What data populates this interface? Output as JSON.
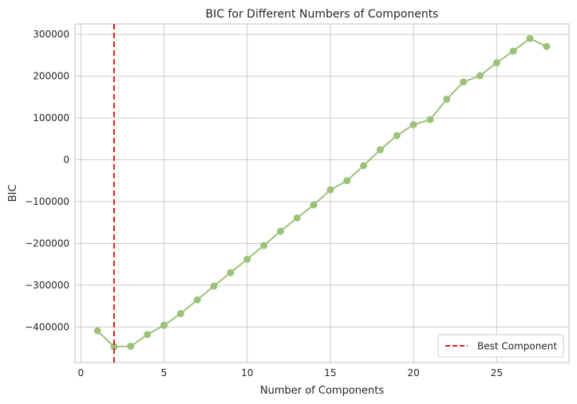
{
  "chart_data": {
    "type": "line",
    "title": "BIC for Different Numbers of Components",
    "xlabel": "Number of Components",
    "ylabel": "BIC",
    "xlim": [
      -0.35,
      29.35
    ],
    "ylim": [
      -485000,
      325000
    ],
    "xticks": [
      0,
      5,
      10,
      15,
      20,
      25
    ],
    "yticks": [
      -400000,
      -300000,
      -200000,
      -100000,
      0,
      100000,
      200000,
      300000
    ],
    "ytick_labels": [
      "−400000",
      "−300000",
      "−200000",
      "−100000",
      "0",
      "100000",
      "200000",
      "300000"
    ],
    "grid": true,
    "series": [
      {
        "color": "#9bc27a",
        "marker": "circle",
        "x": [
          1,
          2,
          3,
          4,
          5,
          6,
          7,
          8,
          9,
          10,
          11,
          12,
          13,
          14,
          15,
          16,
          17,
          18,
          19,
          20,
          21,
          22,
          23,
          24,
          25,
          26,
          27,
          28
        ],
        "values": [
          -409000,
          -447000,
          -446000,
          -418000,
          -396000,
          -368000,
          -335000,
          -302000,
          -270000,
          -238000,
          -205000,
          -171000,
          -139000,
          -108000,
          -72000,
          -50000,
          -14000,
          24000,
          58000,
          84000,
          96000,
          145000,
          186000,
          201000,
          232000,
          260000,
          290000,
          271000
        ]
      }
    ],
    "reference_line": {
      "orientation": "vertical",
      "x": 2,
      "color": "#e41a1c",
      "style": "dashed",
      "label": "Best Component"
    },
    "legend": {
      "position": "bottom-right",
      "entries": [
        "Best Component"
      ]
    }
  }
}
